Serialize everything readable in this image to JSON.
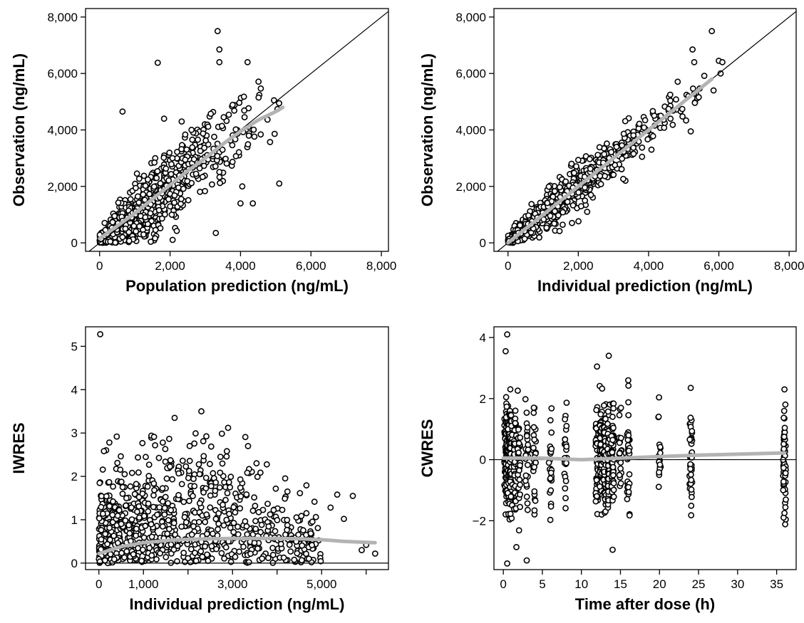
{
  "chart_data": [
    {
      "id": "pop-pred",
      "type": "scatter",
      "title": "",
      "xlabel": "Population prediction (ng/mL)",
      "ylabel": "Observation (ng/mL)",
      "xlim": [
        -400,
        8200
      ],
      "ylim": [
        -300,
        8300
      ],
      "xticks": [
        0,
        2000,
        4000,
        6000,
        8000
      ],
      "xtick_labels": [
        "0",
        "2,000",
        "4,000",
        "6,000",
        "8,000"
      ],
      "yticks": [
        0,
        2000,
        4000,
        6000,
        8000
      ],
      "ytick_labels": [
        "0",
        "2,000",
        "4,000",
        "6,000",
        "8,000"
      ],
      "reference_line": {
        "kind": "identity"
      },
      "trend": {
        "color": "#b3b3b3",
        "x": [
          0,
          500,
          1000,
          1500,
          2000,
          2500,
          3000,
          3500,
          4000,
          4500,
          5000,
          5200
        ],
        "y": [
          150,
          600,
          1050,
          1550,
          2050,
          2550,
          3000,
          3500,
          3950,
          4350,
          4650,
          4800
        ]
      },
      "points_generation": {
        "n": 780,
        "x_range": [
          0,
          5200
        ],
        "scatter_sd": 750,
        "seed": 11
      },
      "points": [
        {
          "x": 3350,
          "y": 7500
        },
        {
          "x": 3400,
          "y": 6850
        },
        {
          "x": 3400,
          "y": 6400
        },
        {
          "x": 1650,
          "y": 6380
        },
        {
          "x": 4200,
          "y": 6400
        },
        {
          "x": 650,
          "y": 4650
        },
        {
          "x": 4950,
          "y": 5050
        },
        {
          "x": 5100,
          "y": 2100
        },
        {
          "x": 3300,
          "y": 350
        },
        {
          "x": 4000,
          "y": 1400
        },
        {
          "x": 4350,
          "y": 1400
        },
        {
          "x": 4050,
          "y": 2000
        }
      ]
    },
    {
      "id": "ind-pred",
      "type": "scatter",
      "title": "",
      "xlabel": "Individual prediction (ng/mL)",
      "ylabel": "Observation (ng/mL)",
      "xlim": [
        -400,
        8200
      ],
      "ylim": [
        -300,
        8300
      ],
      "xticks": [
        0,
        2000,
        4000,
        6000,
        8000
      ],
      "xtick_labels": [
        "0",
        "2,000",
        "4,000",
        "6,000",
        "8,000"
      ],
      "yticks": [
        0,
        2000,
        4000,
        6000,
        8000
      ],
      "ytick_labels": [
        "0",
        "2,000",
        "4,000",
        "6,000",
        "8,000"
      ],
      "reference_line": {
        "kind": "identity"
      },
      "trend": {
        "color": "#b3b3b3",
        "x": [
          0,
          1000,
          2000,
          3000,
          4000,
          5000,
          5800
        ],
        "y": [
          0,
          1000,
          2000,
          3000,
          4000,
          5000,
          5800
        ]
      },
      "points_generation": {
        "n": 760,
        "x_range": [
          0,
          5600
        ],
        "scatter_sd": 380,
        "seed": 23
      },
      "points": [
        {
          "x": 5800,
          "y": 7500
        },
        {
          "x": 5250,
          "y": 6850
        },
        {
          "x": 5300,
          "y": 6400
        },
        {
          "x": 6000,
          "y": 6450
        },
        {
          "x": 6100,
          "y": 6400
        },
        {
          "x": 5850,
          "y": 5400
        },
        {
          "x": 5200,
          "y": 3950
        },
        {
          "x": 6050,
          "y": 6000
        }
      ]
    },
    {
      "id": "iwres",
      "type": "scatter",
      "title": "",
      "xlabel": "Individual prediction (ng/mL)",
      "ylabel": "IWRES",
      "xlim": [
        -300,
        6500
      ],
      "ylim": [
        -0.15,
        5.45
      ],
      "xticks": [
        0,
        1000,
        2000,
        3000,
        4000,
        5000,
        6000
      ],
      "xtick_labels": [
        "0",
        "1,000",
        "",
        "3,000",
        "",
        "5,000",
        ""
      ],
      "yticks": [
        0,
        1,
        2,
        3,
        4,
        5
      ],
      "ytick_labels": [
        "0",
        "1",
        "2",
        "3",
        "4",
        "5"
      ],
      "reference_line": {
        "kind": "horizontal",
        "y": 0
      },
      "trend": {
        "color": "#b3b3b3",
        "x": [
          0,
          500,
          1000,
          1500,
          2000,
          2500,
          3000,
          3500,
          4000,
          4500,
          5000,
          5500,
          6200
        ],
        "y": [
          0.22,
          0.38,
          0.47,
          0.52,
          0.55,
          0.56,
          0.57,
          0.57,
          0.57,
          0.56,
          0.54,
          0.5,
          0.47
        ]
      },
      "points_generation": {
        "n": 820,
        "x_range": [
          0,
          5000
        ],
        "seed": 37
      },
      "points": [
        {
          "x": 30,
          "y": 5.28
        },
        {
          "x": 400,
          "y": 2.92
        },
        {
          "x": 2300,
          "y": 3.5
        },
        {
          "x": 1700,
          "y": 3.35
        },
        {
          "x": 2900,
          "y": 3.12
        },
        {
          "x": 5700,
          "y": 1.55
        },
        {
          "x": 5350,
          "y": 1.58
        },
        {
          "x": 5500,
          "y": 1.02
        },
        {
          "x": 5200,
          "y": 1.28
        },
        {
          "x": 6200,
          "y": 0.22
        },
        {
          "x": 6000,
          "y": 0.42
        },
        {
          "x": 5900,
          "y": 0.3
        }
      ]
    },
    {
      "id": "cwres",
      "type": "scatter",
      "title": "",
      "xlabel": "Time after dose (h)",
      "ylabel": "CWRES",
      "xlim": [
        -1.2,
        37.5
      ],
      "ylim": [
        -3.6,
        4.35
      ],
      "xticks": [
        0,
        5,
        10,
        15,
        20,
        25,
        30,
        35
      ],
      "xtick_labels": [
        "0",
        "5",
        "10",
        "15",
        "20",
        "25",
        "30",
        "35"
      ],
      "yticks": [
        -2,
        0,
        2,
        4
      ],
      "ytick_labels": [
        "−2",
        "0",
        "2",
        "4"
      ],
      "reference_line": {
        "kind": "horizontal",
        "y": 0
      },
      "trend": {
        "color": "#b3b3b3",
        "x": [
          0,
          5,
          10,
          15,
          20,
          25,
          30,
          36
        ],
        "y": [
          0.05,
          0.05,
          0.0,
          0.05,
          0.1,
          0.15,
          0.18,
          0.22
        ]
      },
      "time_points_h": [
        0.3,
        0.5,
        0.75,
        1,
        1.5,
        2,
        3,
        4,
        6,
        8,
        12,
        12.5,
        13,
        13.5,
        14,
        15,
        16,
        20,
        24,
        36
      ],
      "points_generation": {
        "seed": 53
      },
      "points": [
        {
          "x": 0.5,
          "y": 4.1
        },
        {
          "x": 0.3,
          "y": 3.55
        },
        {
          "x": 0.5,
          "y": -3.4
        },
        {
          "x": 3,
          "y": -3.3
        },
        {
          "x": 13.5,
          "y": 3.4
        },
        {
          "x": 12,
          "y": 3.05
        },
        {
          "x": 16,
          "y": 2.6
        },
        {
          "x": 24,
          "y": 2.35
        },
        {
          "x": 14,
          "y": -2.95
        },
        {
          "x": 36,
          "y": 2.3
        },
        {
          "x": 36,
          "y": -1.75
        }
      ]
    }
  ]
}
